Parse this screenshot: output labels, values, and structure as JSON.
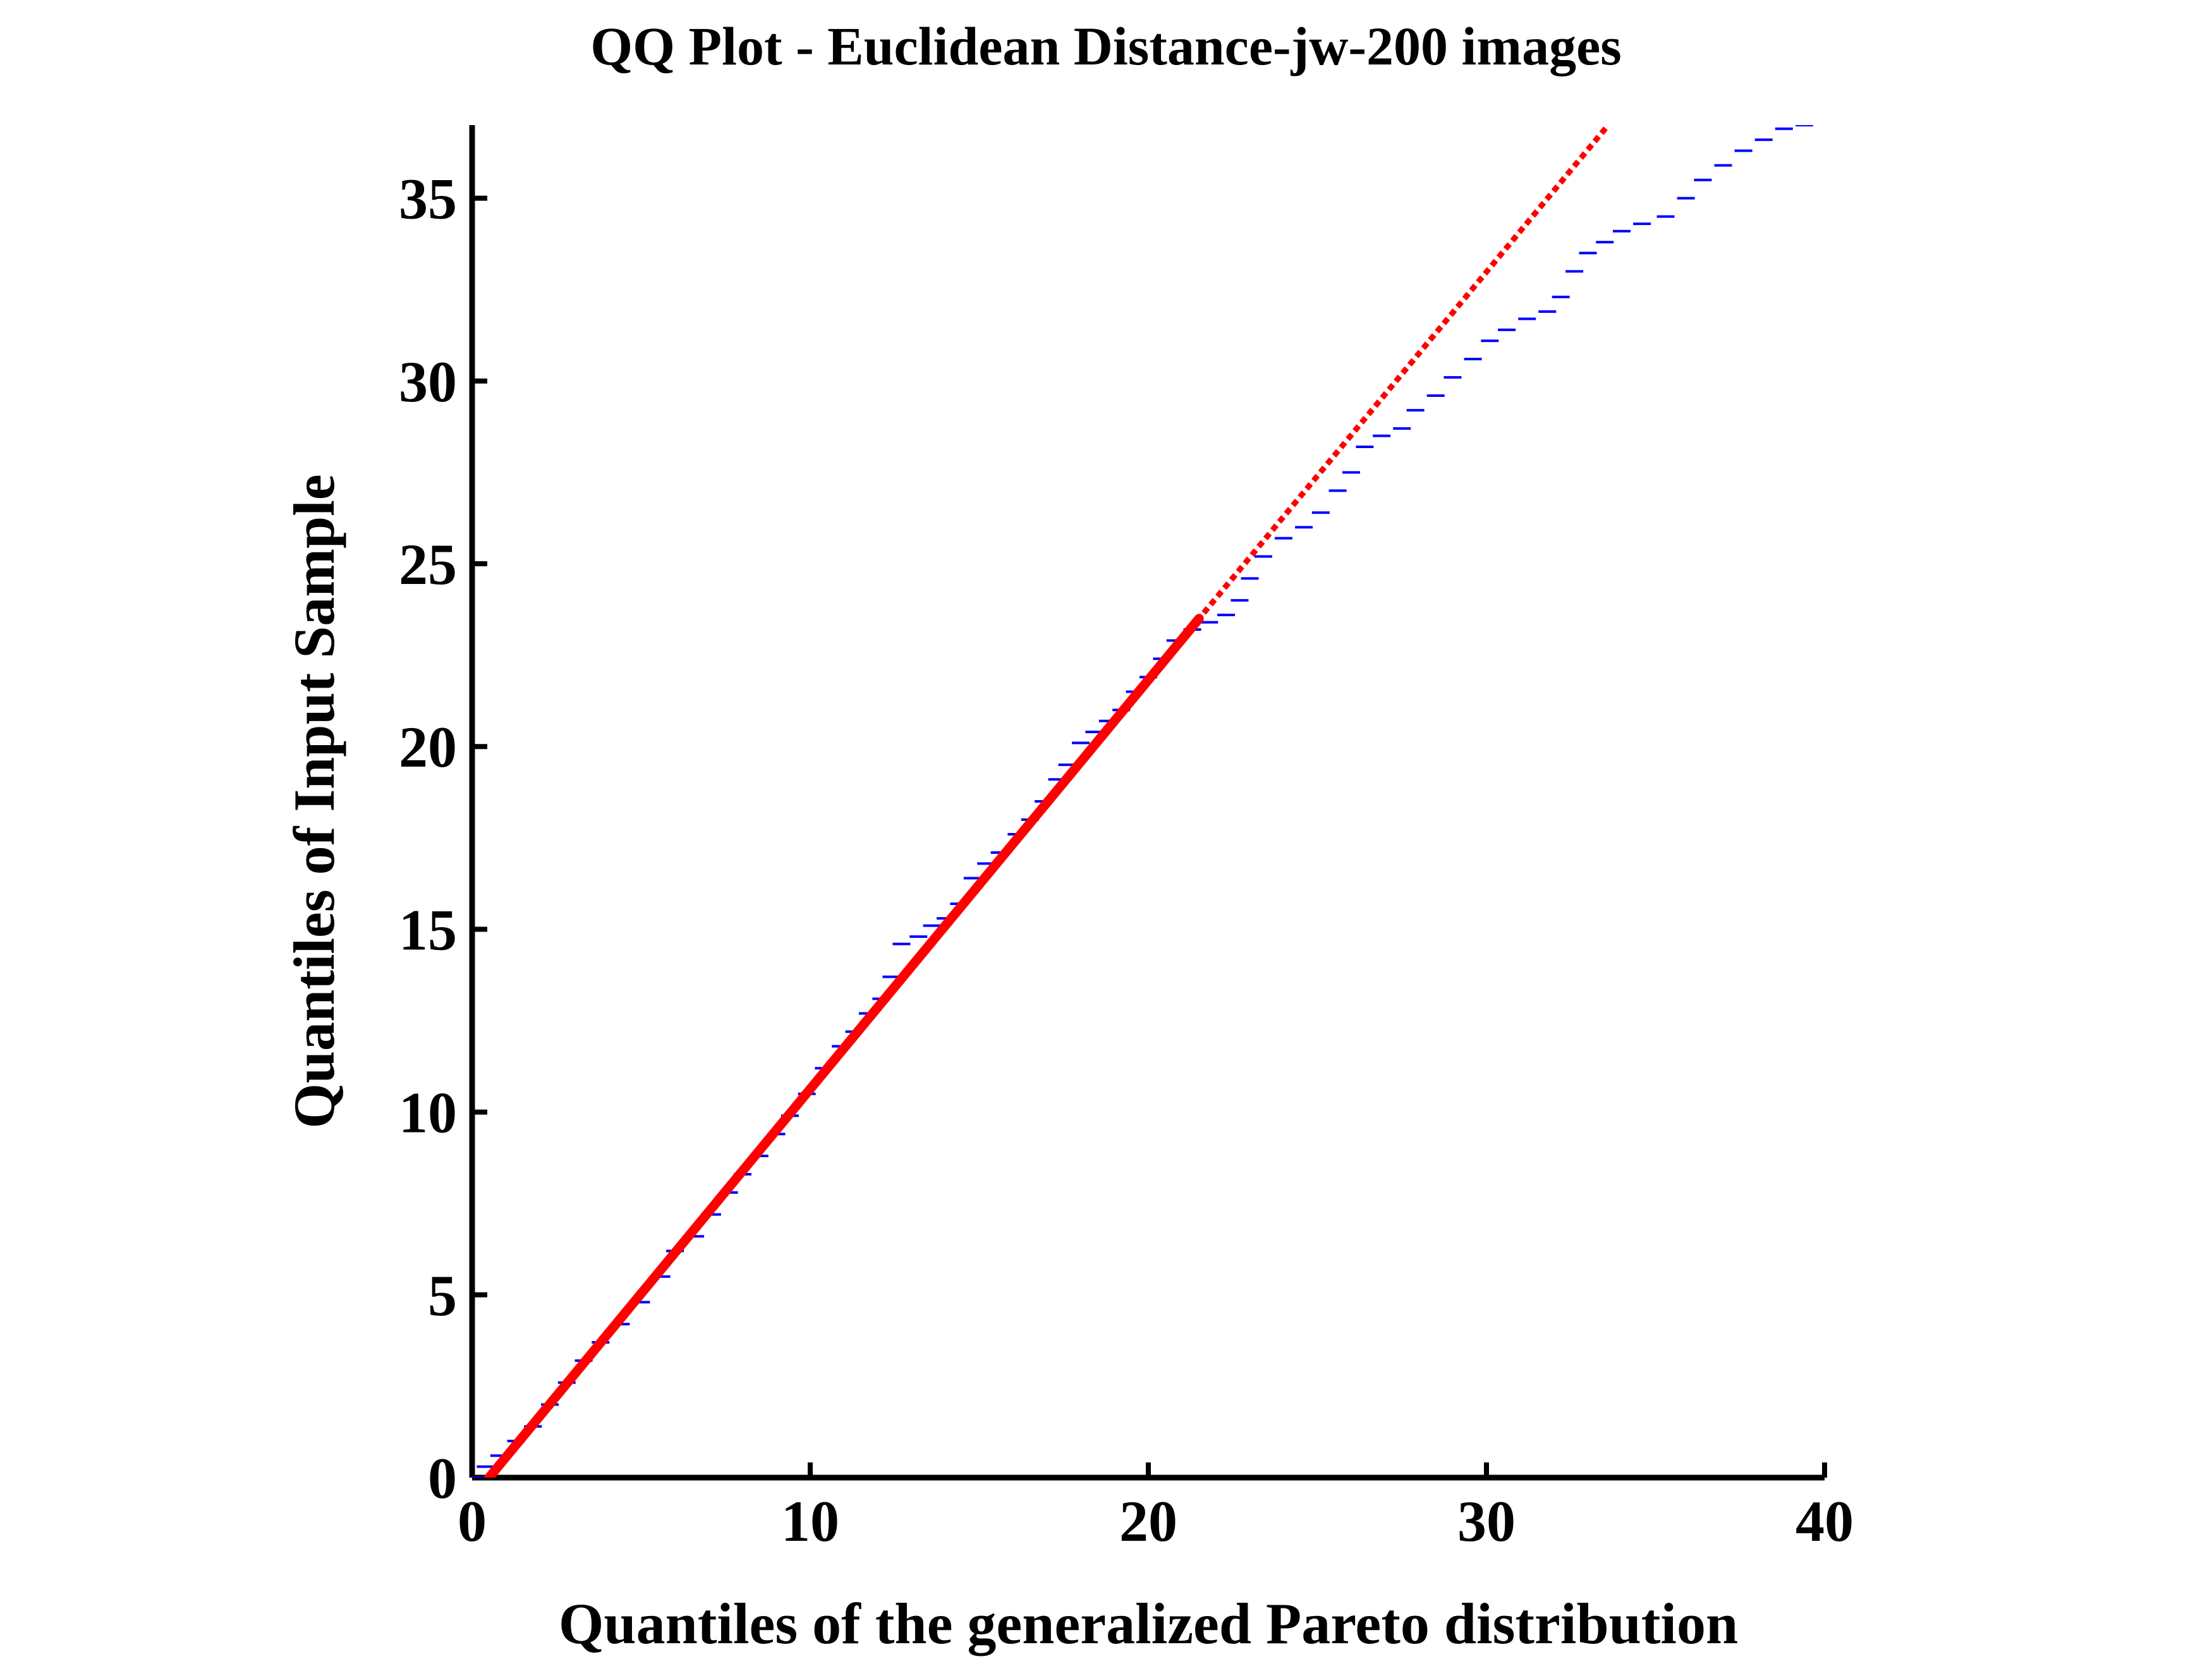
{
  "chart_data": {
    "type": "scatter",
    "title": "QQ Plot - Euclidean Distance-jw-200 images",
    "xlabel": "Quantiles of  the generalized Pareto distribution",
    "ylabel": "Quantiles of Input Sample",
    "xlim": [
      0,
      40
    ],
    "ylim": [
      0,
      37
    ],
    "xticks": [
      0,
      10,
      20,
      30,
      40
    ],
    "yticks": [
      0,
      5,
      10,
      15,
      20,
      25,
      30,
      35
    ],
    "grid": false,
    "legend": "none",
    "series": [
      {
        "style": "dots",
        "color": "#0000ff",
        "points": [
          [
            0.1,
            0.0
          ],
          [
            0.4,
            0.3
          ],
          [
            0.8,
            0.6
          ],
          [
            1.3,
            1.0
          ],
          [
            1.8,
            1.4
          ],
          [
            2.3,
            2.0
          ],
          [
            2.8,
            2.6
          ],
          [
            3.3,
            3.2
          ],
          [
            3.8,
            3.7
          ],
          [
            4.4,
            4.2
          ],
          [
            5.0,
            4.8
          ],
          [
            5.6,
            5.5
          ],
          [
            6.0,
            6.2
          ],
          [
            6.6,
            6.6
          ],
          [
            7.1,
            7.2
          ],
          [
            7.6,
            7.8
          ],
          [
            8.0,
            8.3
          ],
          [
            8.5,
            8.8
          ],
          [
            9.0,
            9.4
          ],
          [
            9.4,
            9.9
          ],
          [
            9.9,
            10.5
          ],
          [
            10.4,
            11.2
          ],
          [
            10.9,
            11.8
          ],
          [
            11.3,
            12.2
          ],
          [
            11.7,
            12.7
          ],
          [
            12.1,
            13.1
          ],
          [
            12.4,
            13.7
          ],
          [
            12.7,
            14.6
          ],
          [
            13.2,
            14.8
          ],
          [
            13.6,
            15.1
          ],
          [
            14.0,
            15.3
          ],
          [
            14.4,
            15.7
          ],
          [
            14.8,
            16.4
          ],
          [
            15.2,
            16.8
          ],
          [
            15.6,
            17.1
          ],
          [
            16.1,
            17.6
          ],
          [
            16.5,
            18.0
          ],
          [
            16.9,
            18.5
          ],
          [
            17.3,
            19.1
          ],
          [
            17.6,
            19.5
          ],
          [
            18.0,
            20.1
          ],
          [
            18.4,
            20.4
          ],
          [
            18.8,
            20.7
          ],
          [
            19.2,
            21.0
          ],
          [
            19.6,
            21.5
          ],
          [
            20.0,
            21.9
          ],
          [
            20.4,
            22.4
          ],
          [
            20.8,
            22.9
          ],
          [
            21.3,
            23.2
          ],
          [
            21.8,
            23.4
          ],
          [
            22.3,
            23.6
          ],
          [
            22.7,
            24.0
          ],
          [
            23.0,
            24.6
          ],
          [
            23.4,
            25.2
          ],
          [
            24.0,
            25.7
          ],
          [
            24.6,
            26.0
          ],
          [
            25.1,
            26.4
          ],
          [
            25.6,
            27.0
          ],
          [
            26.0,
            27.5
          ],
          [
            26.4,
            28.2
          ],
          [
            26.9,
            28.5
          ],
          [
            27.5,
            28.7
          ],
          [
            27.9,
            29.2
          ],
          [
            28.5,
            29.6
          ],
          [
            29.0,
            30.1
          ],
          [
            29.6,
            30.6
          ],
          [
            30.1,
            31.1
          ],
          [
            30.6,
            31.4
          ],
          [
            31.2,
            31.7
          ],
          [
            31.8,
            31.9
          ],
          [
            32.2,
            32.3
          ],
          [
            32.6,
            33.0
          ],
          [
            33.0,
            33.5
          ],
          [
            33.5,
            33.8
          ],
          [
            34.0,
            34.1
          ],
          [
            34.6,
            34.3
          ],
          [
            35.3,
            34.5
          ],
          [
            35.9,
            35.0
          ],
          [
            36.4,
            35.5
          ],
          [
            37.0,
            35.9
          ],
          [
            37.6,
            36.3
          ],
          [
            38.2,
            36.6
          ],
          [
            38.8,
            36.9
          ],
          [
            39.4,
            37.0
          ]
        ]
      },
      {
        "style": "solid",
        "color": "#ff0000",
        "points": [
          [
            0.5,
            0.0
          ],
          [
            21.5,
            23.5
          ]
        ]
      },
      {
        "style": "dashed",
        "color": "#ff0000",
        "points": [
          [
            0.0,
            -0.6
          ],
          [
            0.5,
            0.0
          ],
          [
            21.5,
            23.5
          ],
          [
            33.6,
            37.0
          ]
        ]
      }
    ]
  }
}
